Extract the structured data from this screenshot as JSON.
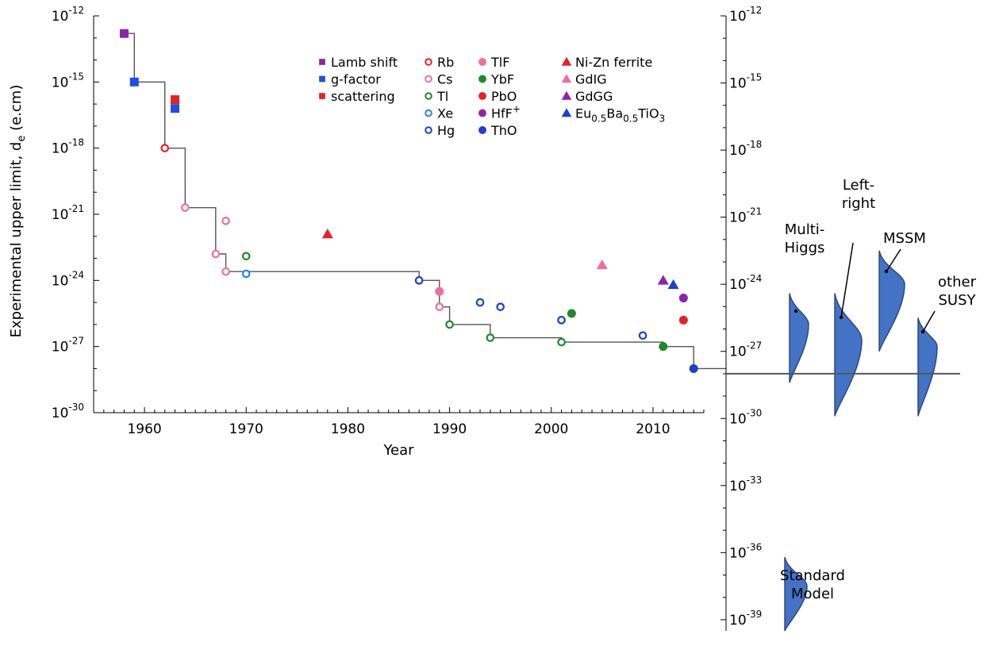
{
  "chart_data": {
    "type": "scatter",
    "title": "",
    "xlabel": "Year",
    "ylabel": "Experimental upper limit, d",
    "ylabel_subscript": "e",
    "ylabel_suffix": " (e.cm)",
    "xlim": [
      1955,
      2015
    ],
    "ylim": [
      -30,
      -12
    ],
    "yscale": "log",
    "right_axis_ylim": [
      -39.5,
      -12
    ],
    "grid": false,
    "xticks": [
      1960,
      1970,
      1980,
      1990,
      2000,
      2010
    ],
    "xtick_labels": [
      "1960",
      "1970",
      "1980",
      "1990",
      "2000",
      "2010"
    ],
    "yticks_exp": [
      -12,
      -15,
      -18,
      -21,
      -24,
      -27,
      -30
    ],
    "ytick_labels": [
      "-12",
      "-15",
      "-18",
      "-21",
      "-24",
      "-27",
      "-30"
    ],
    "right_yticks_exp": [
      -12,
      -15,
      -18,
      -21,
      -24,
      -27,
      -30,
      -33,
      -36,
      -39
    ],
    "right_ytick_labels": [
      "-12",
      "-15",
      "-18",
      "-21",
      "-24",
      "-27",
      "-30",
      "-33",
      "-36",
      "-39"
    ],
    "tick_base": "10",
    "series": [
      {
        "name": "Lamb shift",
        "marker": "square",
        "filled": true,
        "color": "#8e24aa",
        "points": [
          [
            1958,
            -12.8
          ]
        ]
      },
      {
        "name": "g-factor",
        "marker": "square",
        "filled": true,
        "color": "#1f4fe0",
        "points": [
          [
            1959,
            -15.0
          ],
          [
            1963,
            -16.2
          ]
        ]
      },
      {
        "name": "scattering",
        "marker": "square",
        "filled": true,
        "color": "#e8202a",
        "points": [
          [
            1963,
            -15.8
          ]
        ]
      },
      {
        "name": "Rb",
        "marker": "circle",
        "filled": false,
        "color": "#e8202a",
        "points": [
          [
            1962,
            -18.0
          ]
        ]
      },
      {
        "name": "Cs",
        "marker": "circle",
        "filled": false,
        "color": "#ee6ea0",
        "points": [
          [
            1964,
            -20.7
          ],
          [
            1967,
            -22.8
          ],
          [
            1968,
            -21.3
          ],
          [
            1968,
            -23.6
          ],
          [
            1989,
            -25.2
          ]
        ]
      },
      {
        "name": "Tl",
        "marker": "circle",
        "filled": false,
        "color": "#1e8a2a",
        "points": [
          [
            1970,
            -22.9
          ],
          [
            1990,
            -26.0
          ],
          [
            1994,
            -26.6
          ],
          [
            2001,
            -26.8
          ]
        ]
      },
      {
        "name": "Xe",
        "marker": "circle",
        "filled": false,
        "color": "#2a7ff0",
        "points": [
          [
            1970,
            -23.7
          ]
        ]
      },
      {
        "name": "Hg",
        "marker": "circle",
        "filled": false,
        "color": "#1c3fd0",
        "points": [
          [
            1987,
            -24.0
          ],
          [
            1993,
            -25.0
          ],
          [
            1995,
            -25.2
          ],
          [
            2001,
            -25.8
          ],
          [
            2009,
            -26.5
          ]
        ]
      },
      {
        "name": "TlF",
        "marker": "circle",
        "filled": true,
        "color": "#ee6ea0",
        "points": [
          [
            1989,
            -24.5
          ]
        ]
      },
      {
        "name": "YbF",
        "marker": "circle",
        "filled": true,
        "color": "#1e8a2a",
        "points": [
          [
            2002,
            -25.5
          ],
          [
            2011,
            -27.0
          ]
        ]
      },
      {
        "name": "PbO",
        "marker": "circle",
        "filled": true,
        "color": "#e8202a",
        "points": [
          [
            2013,
            -25.8
          ]
        ]
      },
      {
        "name": "HfF",
        "name_sup": "+",
        "marker": "circle",
        "filled": true,
        "color": "#8e24aa",
        "points": [
          [
            2013,
            -24.8
          ]
        ]
      },
      {
        "name": "ThO",
        "marker": "circle",
        "filled": true,
        "color": "#1c3fd0",
        "points": [
          [
            2014,
            -28.0
          ]
        ]
      },
      {
        "name": "Ni-Zn ferrite",
        "marker": "triangle",
        "filled": true,
        "color": "#e8202a",
        "points": [
          [
            1978,
            -21.9
          ]
        ]
      },
      {
        "name": "GdIG",
        "marker": "triangle",
        "filled": true,
        "color": "#ee6ea0",
        "points": [
          [
            2005,
            -23.3
          ]
        ]
      },
      {
        "name": "GdGG",
        "marker": "triangle",
        "filled": true,
        "color": "#8e24aa",
        "points": [
          [
            2011,
            -24.0
          ]
        ]
      },
      {
        "name_parts": [
          [
            "Eu",
            ""
          ],
          [
            "0.5",
            "sub"
          ],
          [
            "Ba",
            ""
          ],
          [
            "0.5",
            "sub"
          ],
          [
            "TiO",
            ""
          ],
          [
            "3",
            "sub"
          ]
        ],
        "marker": "triangle",
        "filled": true,
        "color": "#1c3fd0",
        "points": [
          [
            2012,
            -24.2
          ]
        ]
      }
    ],
    "limit_steps": [
      [
        1958,
        -12.8
      ],
      [
        1959,
        -15.0
      ],
      [
        1962,
        -18.0
      ],
      [
        1964,
        -20.7
      ],
      [
        1967,
        -22.8
      ],
      [
        1968,
        -23.6
      ],
      [
        1987,
        -24.0
      ],
      [
        1989,
        -25.2
      ],
      [
        1990,
        -26.0
      ],
      [
        1994,
        -26.6
      ],
      [
        2001,
        -26.8
      ],
      [
        2011,
        -27.0
      ],
      [
        2014,
        -28.0
      ]
    ],
    "model_predictions": {
      "color": "#4472c4",
      "edge_color": "#2b4a80",
      "baseline_exp": -28.0,
      "models": [
        {
          "label_lines": [
            "Multi-",
            "Higgs"
          ],
          "range_exp": [
            -24.4,
            -28.4
          ],
          "peak_exp": -25.8
        },
        {
          "label_lines": [
            "Left-",
            "right"
          ],
          "range_exp": [
            -24.4,
            -29.9
          ],
          "peak_exp": -26.5
        },
        {
          "label_lines": [
            "MSSM"
          ],
          "range_exp": [
            -22.5,
            -27.0
          ],
          "peak_exp": -24.0
        },
        {
          "label_lines": [
            "other",
            "SUSY"
          ],
          "range_exp": [
            -25.5,
            -29.9
          ],
          "peak_exp": -26.8
        },
        {
          "label_lines": [
            "Standard",
            "Model"
          ],
          "range_exp": [
            -36.2,
            -39.5
          ],
          "peak_exp": -37.5
        }
      ]
    }
  }
}
